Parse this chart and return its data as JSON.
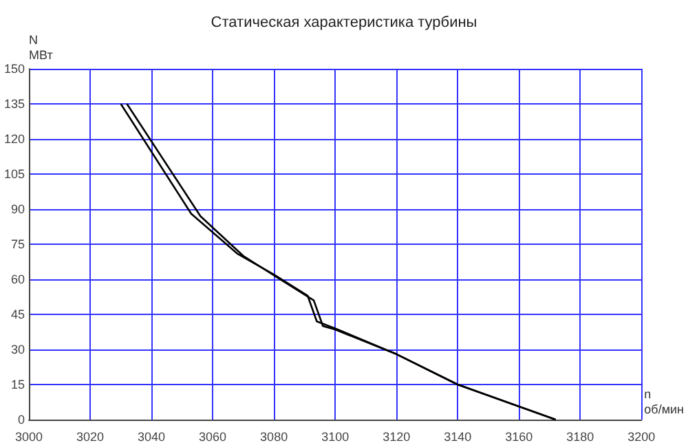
{
  "chart_data": {
    "type": "line",
    "title": "Статическая характеристика турбины",
    "xlabel": "n\nоб/мин",
    "ylabel": "N\nМВт",
    "xlim": [
      3000,
      3200
    ],
    "xticks": [
      3000,
      3020,
      3040,
      3060,
      3080,
      3100,
      3120,
      3140,
      3160,
      3180,
      3200
    ],
    "ylim": [
      0,
      150
    ],
    "yticks": [
      0,
      15,
      30,
      45,
      60,
      75,
      90,
      105,
      120,
      135,
      150
    ],
    "grid": true,
    "marker": "none",
    "line_style": "solid",
    "series": [
      {
        "color": "#000000",
        "x": [
          3030,
          3053,
          3068,
          3080,
          3091,
          3094,
          3100,
          3120,
          3140,
          3172
        ],
        "values": [
          135,
          88,
          71,
          62,
          53,
          42,
          39,
          28,
          15,
          0
        ]
      },
      {
        "color": "#000000",
        "x": [
          3032,
          3056,
          3070,
          3082,
          3093,
          3096,
          3100,
          3120,
          3140,
          3172
        ],
        "values": [
          135,
          87,
          70,
          60,
          51,
          40,
          38.5,
          28,
          15,
          0
        ]
      }
    ]
  }
}
